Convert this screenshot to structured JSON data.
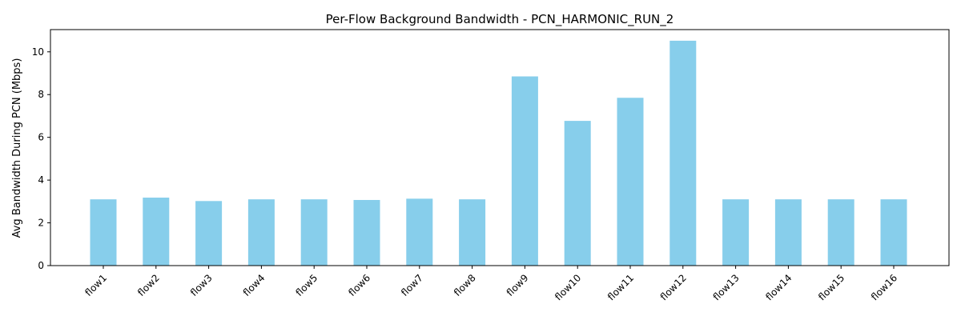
{
  "chart_data": {
    "type": "bar",
    "title": "Per-Flow Background Bandwidth - PCN_HARMONIC_RUN_2",
    "xlabel": "",
    "ylabel": "Avg Bandwidth During PCN (Mbps)",
    "categories": [
      "flow1",
      "flow2",
      "flow3",
      "flow4",
      "flow5",
      "flow6",
      "flow7",
      "flow8",
      "flow9",
      "flow10",
      "flow11",
      "flow12",
      "flow13",
      "flow14",
      "flow15",
      "flow16"
    ],
    "values": [
      3.1,
      3.18,
      3.02,
      3.1,
      3.1,
      3.07,
      3.13,
      3.1,
      8.85,
      6.77,
      7.85,
      10.52,
      3.1,
      3.1,
      3.1,
      3.1
    ],
    "ylim": [
      0,
      11.04
    ],
    "yticks": [
      0,
      2,
      4,
      6,
      8,
      10
    ],
    "grid": false,
    "bar_color": "#87ceeb"
  }
}
